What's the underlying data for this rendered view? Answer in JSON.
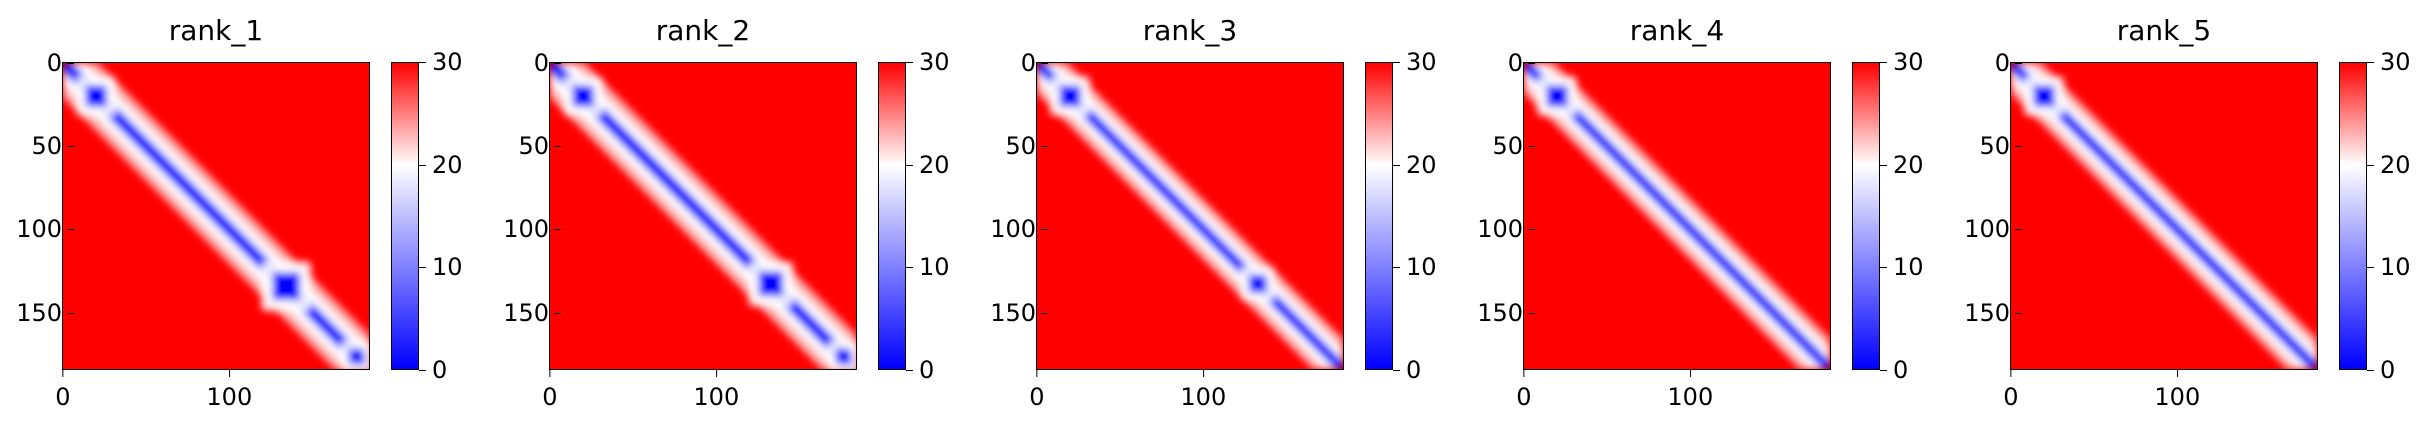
{
  "chart_data": [
    {
      "type": "heatmap",
      "title": "rank_1",
      "size": 185,
      "xticks": [
        "0",
        "100"
      ],
      "xtick_values": [
        0,
        100
      ],
      "yticks": [
        "0",
        "50",
        "100",
        "150"
      ],
      "ytick_values": [
        0,
        50,
        100,
        150
      ],
      "colorbar": {
        "min": 0,
        "max": 30,
        "ticks": [
          "0",
          "10",
          "20",
          "30"
        ],
        "tick_values": [
          0,
          10,
          20,
          30
        ],
        "colormap": [
          "#0000ff",
          "#ffffff",
          "#ff0000"
        ]
      },
      "diagonal_band_width": 8,
      "domain_blocks": [
        [
          10,
          30
        ],
        [
          122,
          148
        ],
        [
          170,
          185
        ]
      ]
    },
    {
      "type": "heatmap",
      "title": "rank_2",
      "size": 185,
      "xticks": [
        "0",
        "100"
      ],
      "xtick_values": [
        0,
        100
      ],
      "yticks": [
        "0",
        "50",
        "100",
        "150"
      ],
      "ytick_values": [
        0,
        50,
        100,
        150
      ],
      "colorbar": {
        "min": 0,
        "max": 30,
        "ticks": [
          "0",
          "10",
          "20",
          "30"
        ],
        "tick_values": [
          0,
          10,
          20,
          30
        ],
        "colormap": [
          "#0000ff",
          "#ffffff",
          "#ff0000"
        ]
      },
      "diagonal_band_width": 8,
      "domain_blocks": [
        [
          10,
          30
        ],
        [
          122,
          145
        ],
        [
          170,
          185
        ]
      ]
    },
    {
      "type": "heatmap",
      "title": "rank_3",
      "size": 185,
      "xticks": [
        "0",
        "100"
      ],
      "xtick_values": [
        0,
        100
      ],
      "yticks": [
        "0",
        "50",
        "100",
        "150"
      ],
      "ytick_values": [
        0,
        50,
        100,
        150
      ],
      "colorbar": {
        "min": 0,
        "max": 30,
        "ticks": [
          "0",
          "10",
          "20",
          "30"
        ],
        "tick_values": [
          0,
          10,
          20,
          30
        ],
        "colormap": [
          "#0000ff",
          "#ffffff",
          "#ff0000"
        ]
      },
      "diagonal_band_width": 7,
      "domain_blocks": [
        [
          10,
          30
        ],
        [
          125,
          142
        ]
      ]
    },
    {
      "type": "heatmap",
      "title": "rank_4",
      "size": 185,
      "xticks": [
        "0",
        "100"
      ],
      "xtick_values": [
        0,
        100
      ],
      "yticks": [
        "0",
        "50",
        "100",
        "150"
      ],
      "ytick_values": [
        0,
        50,
        100,
        150
      ],
      "colorbar": {
        "min": 0,
        "max": 30,
        "ticks": [
          "0",
          "10",
          "20",
          "30"
        ],
        "tick_values": [
          0,
          10,
          20,
          30
        ],
        "colormap": [
          "#0000ff",
          "#ffffff",
          "#ff0000"
        ]
      },
      "diagonal_band_width": 7,
      "domain_blocks": [
        [
          10,
          30
        ]
      ]
    },
    {
      "type": "heatmap",
      "title": "rank_5",
      "size": 185,
      "xticks": [
        "0",
        "100"
      ],
      "xtick_values": [
        0,
        100
      ],
      "yticks": [
        "0",
        "50",
        "100",
        "150"
      ],
      "ytick_values": [
        0,
        50,
        100,
        150
      ],
      "colorbar": {
        "min": 0,
        "max": 30,
        "ticks": [
          "0",
          "10",
          "20",
          "30"
        ],
        "tick_values": [
          0,
          10,
          20,
          30
        ],
        "colormap": [
          "#0000ff",
          "#ffffff",
          "#ff0000"
        ]
      },
      "diagonal_band_width": 7,
      "domain_blocks": [
        [
          10,
          30
        ]
      ]
    }
  ]
}
